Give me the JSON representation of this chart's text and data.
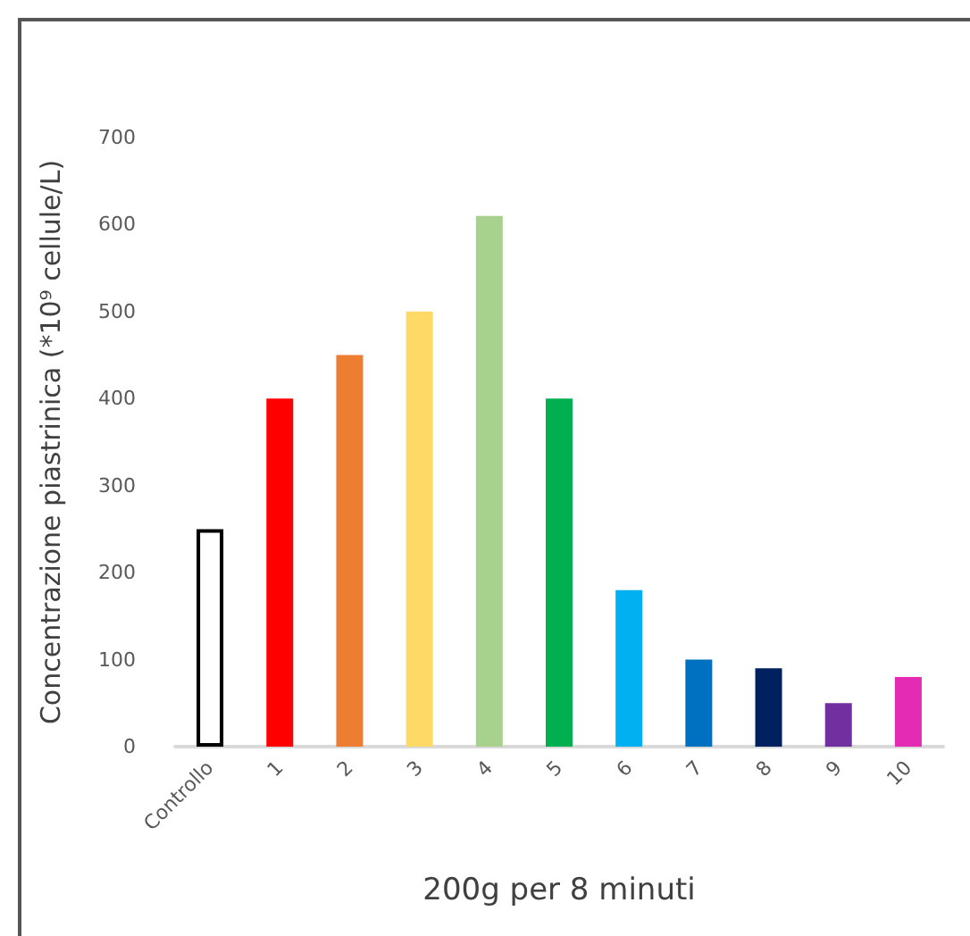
{
  "chart_data": {
    "type": "bar",
    "xlabel": "200g per 8 minuti",
    "ylabel": "Concentrazione piastrinica (*10⁹ cellule/L)",
    "categories": [
      "Controllo",
      "1",
      "2",
      "3",
      "4",
      "5",
      "6",
      "7",
      "8",
      "9",
      "10"
    ],
    "values": [
      250,
      400,
      450,
      500,
      610,
      400,
      180,
      100,
      90,
      50,
      80
    ],
    "colors": [
      "#ffffff",
      "#ff0000",
      "#ed7d31",
      "#ffd966",
      "#a9d18e",
      "#00b050",
      "#00b0f0",
      "#0070c0",
      "#002060",
      "#7030a0",
      "#e32bb4"
    ],
    "ylim": [
      0,
      700
    ],
    "yticks": [
      0,
      100,
      200,
      300,
      400,
      500,
      600,
      700
    ]
  }
}
